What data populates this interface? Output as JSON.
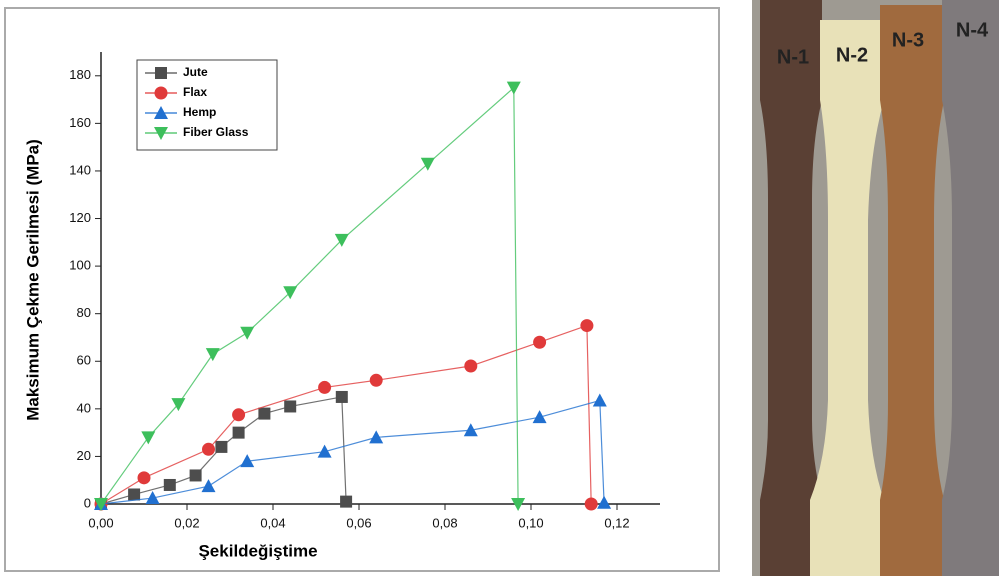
{
  "chart_data": {
    "type": "line",
    "x_label": "Şekildeğiştime",
    "y_label": "Maksimum Çekme Gerilmesi (MPa)",
    "xlim": [
      0,
      0.13
    ],
    "ylim": [
      0,
      190
    ],
    "xticks": [
      {
        "value": 0,
        "label": "0,00"
      },
      {
        "value": 0.02,
        "label": "0,02"
      },
      {
        "value": 0.04,
        "label": "0,04"
      },
      {
        "value": 0.06,
        "label": "0,06"
      },
      {
        "value": 0.08,
        "label": "0,08"
      },
      {
        "value": 0.1,
        "label": "0,10"
      },
      {
        "value": 0.12,
        "label": "0,12"
      }
    ],
    "yticks": [
      0,
      20,
      40,
      60,
      80,
      100,
      120,
      140,
      160,
      180
    ],
    "series": [
      {
        "name": "Jute",
        "color": "#4d4d4d",
        "marker": "square",
        "x": [
          0,
          0.0077,
          0.016,
          0.022,
          0.028,
          0.032,
          0.038,
          0.044,
          0.056,
          0.057
        ],
        "values": [
          0,
          4,
          8,
          12,
          24,
          30,
          38,
          41,
          45,
          1
        ]
      },
      {
        "name": "Flax",
        "color": "#e03a3a",
        "marker": "circle",
        "x": [
          0,
          0.01,
          0.025,
          0.032,
          0.052,
          0.064,
          0.086,
          0.102,
          0.113,
          0.114
        ],
        "values": [
          0,
          11,
          23,
          37.5,
          49,
          52,
          58,
          68,
          75,
          0
        ]
      },
      {
        "name": "Hemp",
        "color": "#2170d0",
        "marker": "triangle-up",
        "x": [
          0,
          0.012,
          0.025,
          0.034,
          0.052,
          0.064,
          0.086,
          0.102,
          0.116,
          0.117
        ],
        "values": [
          0,
          2.5,
          7.5,
          18,
          22,
          28,
          31,
          36.5,
          43.5,
          0.5
        ]
      },
      {
        "name": "Fiber Glass",
        "color": "#3dbf5c",
        "marker": "triangle-down",
        "x": [
          0,
          0.011,
          0.018,
          0.026,
          0.034,
          0.044,
          0.056,
          0.076,
          0.096,
          0.097
        ],
        "values": [
          0,
          28,
          42,
          63,
          72,
          89,
          111,
          143,
          175,
          0
        ]
      }
    ]
  },
  "photo": {
    "labels": [
      "N-1",
      "N-2",
      "N-3",
      "N-4"
    ]
  }
}
